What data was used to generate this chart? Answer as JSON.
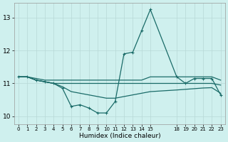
{
  "xlabel": "Humidex (Indice chaleur)",
  "bg_color": "#cff0ee",
  "grid_color": "#b8d8d6",
  "line_color": "#1a6b68",
  "xmin": -0.5,
  "xmax": 23.5,
  "ymin": 9.75,
  "ymax": 13.45,
  "yticks": [
    10,
    11,
    12,
    13
  ],
  "xticks": [
    0,
    1,
    2,
    3,
    4,
    5,
    6,
    7,
    8,
    9,
    10,
    11,
    12,
    13,
    14,
    15,
    18,
    19,
    20,
    21,
    22,
    23
  ],
  "series": [
    {
      "x": [
        0,
        1,
        2,
        3,
        4,
        5,
        6,
        7,
        8,
        9,
        10,
        11,
        12,
        13,
        14,
        15,
        18,
        19,
        20,
        21,
        22,
        23
      ],
      "y": [
        11.2,
        11.2,
        11.15,
        11.1,
        11.1,
        11.1,
        11.1,
        11.1,
        11.1,
        11.1,
        11.1,
        11.1,
        11.1,
        11.1,
        11.1,
        11.2,
        11.2,
        11.2,
        11.2,
        11.2,
        11.2,
        11.1
      ],
      "marker": false,
      "lw": 0.9
    },
    {
      "x": [
        0,
        1,
        2,
        3,
        4,
        5,
        6,
        7,
        8,
        9,
        10,
        11,
        12,
        13,
        14,
        15,
        18,
        19,
        20,
        21,
        22,
        23
      ],
      "y": [
        11.2,
        11.2,
        11.1,
        11.05,
        11.0,
        11.0,
        11.0,
        11.0,
        11.0,
        11.0,
        11.0,
        11.0,
        11.0,
        11.0,
        11.0,
        11.0,
        11.0,
        11.0,
        11.0,
        11.0,
        11.0,
        10.95
      ],
      "marker": false,
      "lw": 0.9
    },
    {
      "x": [
        0,
        1,
        2,
        3,
        4,
        5,
        6,
        7,
        8,
        9,
        10,
        11,
        12,
        13,
        14,
        15,
        18,
        19,
        20,
        21,
        22,
        23
      ],
      "y": [
        11.2,
        11.2,
        11.1,
        11.05,
        11.0,
        10.9,
        10.75,
        10.7,
        10.65,
        10.6,
        10.55,
        10.55,
        10.6,
        10.65,
        10.7,
        10.75,
        10.8,
        10.82,
        10.84,
        10.86,
        10.87,
        10.7
      ],
      "marker": false,
      "lw": 0.9
    },
    {
      "x": [
        0,
        1,
        2,
        3,
        4,
        5,
        6,
        7,
        8,
        9,
        10,
        11,
        12,
        13,
        14,
        15,
        18,
        19,
        20,
        21,
        22,
        23
      ],
      "y": [
        11.2,
        11.2,
        11.1,
        11.05,
        11.0,
        10.85,
        10.3,
        10.35,
        10.25,
        10.1,
        10.1,
        10.45,
        11.9,
        11.95,
        12.6,
        13.25,
        11.2,
        11.0,
        11.15,
        11.15,
        11.15,
        10.65
      ],
      "marker": true,
      "lw": 0.9
    }
  ]
}
